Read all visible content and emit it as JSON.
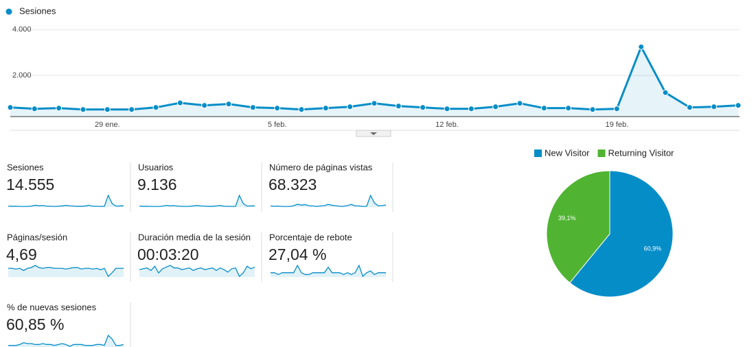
{
  "chart_data": [
    {
      "type": "line",
      "categories": [
        null,
        null,
        null,
        null,
        "29 ene.",
        null,
        null,
        null,
        null,
        null,
        null,
        "5 feb.",
        null,
        null,
        null,
        null,
        null,
        null,
        "12 feb.",
        null,
        null,
        null,
        null,
        null,
        null,
        "19 feb.",
        null,
        null,
        null,
        null,
        null
      ],
      "series": [
        {
          "name": "Sesiones",
          "color": "#058dc7",
          "values": [
            600,
            540,
            570,
            510,
            510,
            510,
            600,
            800,
            690,
            750,
            600,
            570,
            510,
            570,
            630,
            780,
            660,
            600,
            540,
            540,
            630,
            780,
            570,
            570,
            510,
            540,
            3250,
            1250,
            600,
            630,
            690
          ]
        }
      ],
      "ylim": [
        200,
        4250
      ],
      "yticks": [
        {
          "value": 2000,
          "label": "2.000"
        },
        {
          "value": 4000,
          "label": "4.000"
        }
      ],
      "grid": true
    },
    {
      "type": "pie",
      "categories": [
        "New Visitor",
        "Returning Visitor"
      ],
      "values": [
        60.9,
        39.1
      ],
      "value_labels": [
        "60,9%",
        "39,1%"
      ],
      "colors": [
        "#058dc7",
        "#50b432"
      ]
    }
  ],
  "metrics": [
    {
      "label": "Sesiones",
      "value": "14.555",
      "trend": [
        600,
        540,
        570,
        510,
        510,
        510,
        600,
        800,
        690,
        750,
        600,
        570,
        510,
        570,
        630,
        780,
        660,
        600,
        540,
        540,
        630,
        780,
        570,
        570,
        510,
        540,
        3250,
        1250,
        600,
        630,
        690
      ]
    },
    {
      "label": "Usuarios",
      "value": "9.136",
      "trend": [
        370,
        340,
        350,
        320,
        320,
        320,
        370,
        480,
        420,
        450,
        370,
        350,
        320,
        350,
        390,
        470,
        400,
        370,
        340,
        340,
        390,
        470,
        350,
        350,
        320,
        340,
        2000,
        760,
        370,
        390,
        420
      ]
    },
    {
      "label": "Número de páginas vistas",
      "value": "68.323",
      "trend": [
        2700,
        2500,
        2600,
        2400,
        2400,
        2400,
        2800,
        3700,
        3200,
        3500,
        2800,
        2700,
        2400,
        2700,
        2900,
        3600,
        3100,
        2800,
        2500,
        2500,
        2900,
        3600,
        2700,
        2700,
        2400,
        2500,
        9000,
        4500,
        2800,
        2900,
        3200
      ]
    },
    {
      "label": "Páginas/sesión",
      "value": "4,69",
      "trend": [
        4.6,
        4.6,
        4.5,
        4.6,
        4.3,
        4.6,
        4.7,
        5.0,
        4.7,
        4.6,
        4.7,
        4.7,
        4.6,
        4.6,
        4.6,
        4.5,
        4.6,
        4.7,
        4.7,
        4.5,
        4.6,
        4.6,
        4.5,
        4.6,
        4.4,
        4.6,
        3.5,
        4.0,
        4.6,
        4.6,
        4.6
      ]
    },
    {
      "label": "Duración media de la sesión",
      "value": "00:03:20",
      "trend": [
        190,
        195,
        200,
        185,
        210,
        170,
        195,
        205,
        215,
        200,
        200,
        190,
        195,
        200,
        185,
        195,
        200,
        190,
        195,
        200,
        185,
        200,
        190,
        175,
        195,
        200,
        150,
        170,
        210,
        195,
        205
      ]
    },
    {
      "label": "Porcentaje de rebote",
      "value": "27,04 %",
      "trend": [
        27,
        27,
        26,
        27,
        27,
        27,
        27,
        31,
        27,
        26,
        26,
        27,
        27,
        27,
        27,
        30,
        27,
        27,
        27,
        26,
        27,
        26,
        27,
        31,
        25,
        27,
        28,
        26,
        27,
        27,
        27
      ]
    },
    {
      "label": "% de nuevas sesiones",
      "value": "60,85 %",
      "trend": [
        59,
        59,
        59,
        60,
        62,
        61,
        61,
        60,
        60,
        61,
        60,
        60,
        59,
        60,
        61,
        60,
        58,
        60,
        60,
        60,
        59,
        59,
        59,
        60,
        60,
        59,
        70,
        66,
        59,
        59,
        60
      ]
    }
  ]
}
